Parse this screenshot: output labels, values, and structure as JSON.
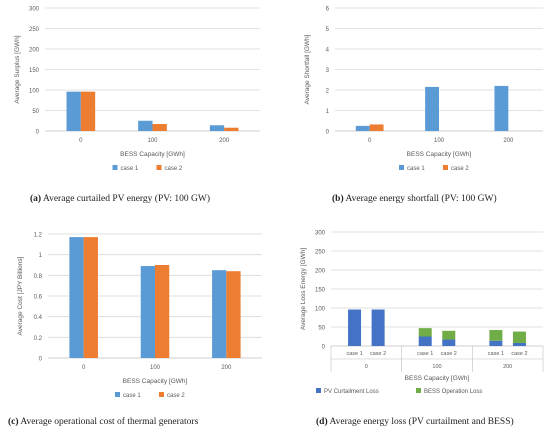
{
  "colors": {
    "case1": "#5b9bd5",
    "case2": "#ed7d31",
    "pv": "#4472c4",
    "bess": "#70ad47",
    "grid": "#d9d9d9",
    "text": "#595959"
  },
  "chart_data": [
    {
      "type": "bar",
      "id": "a",
      "caption_label": "(a)",
      "caption_text": "Average curtailed PV energy (PV: 100 GW)",
      "xlabel": "BESS Capacity [GWh]",
      "ylabel": "Average Surplus [GWh]",
      "ylim": [
        0,
        300
      ],
      "yticks": [
        "0",
        "50",
        "100",
        "150",
        "200",
        "250",
        "300"
      ],
      "categories": [
        "0",
        "100",
        "200"
      ],
      "series": [
        {
          "name": "case  1",
          "values": [
            96,
            25,
            14
          ]
        },
        {
          "name": "case 2",
          "values": [
            96,
            17,
            8
          ]
        }
      ],
      "legend": "bottom"
    },
    {
      "type": "bar",
      "id": "b",
      "caption_label": "(b)",
      "caption_text": "Average energy shortfall (PV: 100 GW)",
      "xlabel": "BESS Capacity [GWh]",
      "ylabel": "Average Shortfall  [GWh]",
      "ylim": [
        0,
        6
      ],
      "yticks": [
        "0",
        "1",
        "2",
        "3",
        "4",
        "5",
        "6"
      ],
      "categories": [
        "0",
        "100",
        "200"
      ],
      "series": [
        {
          "name": "case  1",
          "values": [
            0.25,
            2.15,
            2.2
          ]
        },
        {
          "name": "case 2",
          "values": [
            0.32,
            0,
            0
          ]
        }
      ],
      "legend": "bottom"
    },
    {
      "type": "bar",
      "id": "c",
      "caption_label": "(c)",
      "caption_text": "Average operational cost of thermal generators",
      "xlabel": "BESS Capacity [GWh]",
      "ylabel": "Average Cost [JPY Billions]",
      "ylim": [
        0,
        1.2
      ],
      "yticks": [
        "0",
        "0.2",
        "0.4",
        "0.6",
        "0.8",
        "1",
        "1.2"
      ],
      "categories": [
        "0",
        "100",
        "200"
      ],
      "series": [
        {
          "name": "case 1",
          "values": [
            1.17,
            0.89,
            0.85
          ]
        },
        {
          "name": "case 2",
          "values": [
            1.17,
            0.9,
            0.84
          ]
        }
      ],
      "legend": "bottom"
    },
    {
      "type": "bar",
      "stacked": true,
      "id": "d",
      "caption_label": "(d)",
      "caption_text": "Average energy loss (PV curtailment and BESS)",
      "xlabel": "BESS Capacity [GWh]",
      "ylabel": "Average Loss Energy [GWh]",
      "ylim": [
        0,
        300
      ],
      "yticks": [
        "0",
        "50",
        "100",
        "150",
        "200",
        "250",
        "300"
      ],
      "groups": [
        "0",
        "100",
        "200"
      ],
      "subcategories": [
        "case 1",
        "case 2"
      ],
      "series": [
        {
          "name": "PV Curtailment Loss",
          "values": [
            96,
            96,
            25,
            17,
            14,
            8
          ]
        },
        {
          "name": "BESS Operation Loss",
          "values": [
            0,
            0,
            22,
            23,
            28,
            30
          ]
        }
      ],
      "legend": "bottom"
    }
  ]
}
